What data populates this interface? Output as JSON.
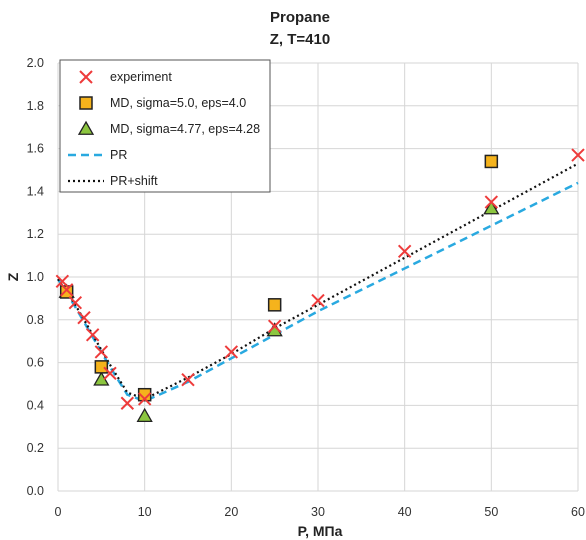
{
  "chart_data": {
    "type": "scatter",
    "title": "Propane",
    "subtitle": "Z, T=410",
    "xlabel": "P, МПа",
    "ylabel": "Z",
    "xlim": [
      0,
      60
    ],
    "ylim": [
      0,
      2.0
    ],
    "xticks": [
      0,
      10,
      20,
      30,
      40,
      50,
      60
    ],
    "yticks": [
      0,
      0.2,
      0.4,
      0.6,
      0.8,
      1.0,
      1.2,
      1.4,
      1.6,
      1.8,
      2.0
    ],
    "grid": true,
    "legend_position": "top-left",
    "series": [
      {
        "name": "experiment",
        "kind": "marker-x",
        "color": "#ee3b3b",
        "x": [
          0.5,
          1,
          2,
          3,
          4,
          5,
          6,
          8,
          10,
          15,
          20,
          25,
          30,
          40,
          50,
          60
        ],
        "y": [
          0.98,
          0.94,
          0.88,
          0.81,
          0.73,
          0.65,
          0.55,
          0.41,
          0.43,
          0.52,
          0.65,
          0.77,
          0.89,
          1.12,
          1.35,
          1.57
        ]
      },
      {
        "name": "MD, sigma=5.0, eps=4.0",
        "kind": "marker-square",
        "color": "#f5b31c",
        "x": [
          1,
          5,
          10,
          25,
          50
        ],
        "y": [
          0.93,
          0.58,
          0.45,
          0.87,
          1.54
        ]
      },
      {
        "name": "MD, sigma=4.77, eps=4.28",
        "kind": "marker-triangle",
        "color": "#8cc63f",
        "x": [
          1,
          5,
          10,
          25,
          50
        ],
        "y": [
          0.93,
          0.52,
          0.35,
          0.75,
          1.32
        ]
      },
      {
        "name": "PR",
        "kind": "line-dashed",
        "color": "#29a9e0",
        "x": [
          0,
          2,
          4,
          6,
          8,
          10,
          15,
          20,
          25,
          30,
          40,
          50,
          60
        ],
        "y": [
          0.99,
          0.86,
          0.72,
          0.58,
          0.45,
          0.42,
          0.51,
          0.62,
          0.73,
          0.84,
          1.04,
          1.24,
          1.44
        ]
      },
      {
        "name": "PR+shift",
        "kind": "line-dotted",
        "color": "#111111",
        "x": [
          0,
          2,
          4,
          6,
          8,
          10,
          15,
          20,
          25,
          30,
          40,
          50,
          60
        ],
        "y": [
          0.99,
          0.87,
          0.73,
          0.59,
          0.46,
          0.43,
          0.53,
          0.64,
          0.76,
          0.87,
          1.09,
          1.31,
          1.53
        ]
      }
    ]
  }
}
